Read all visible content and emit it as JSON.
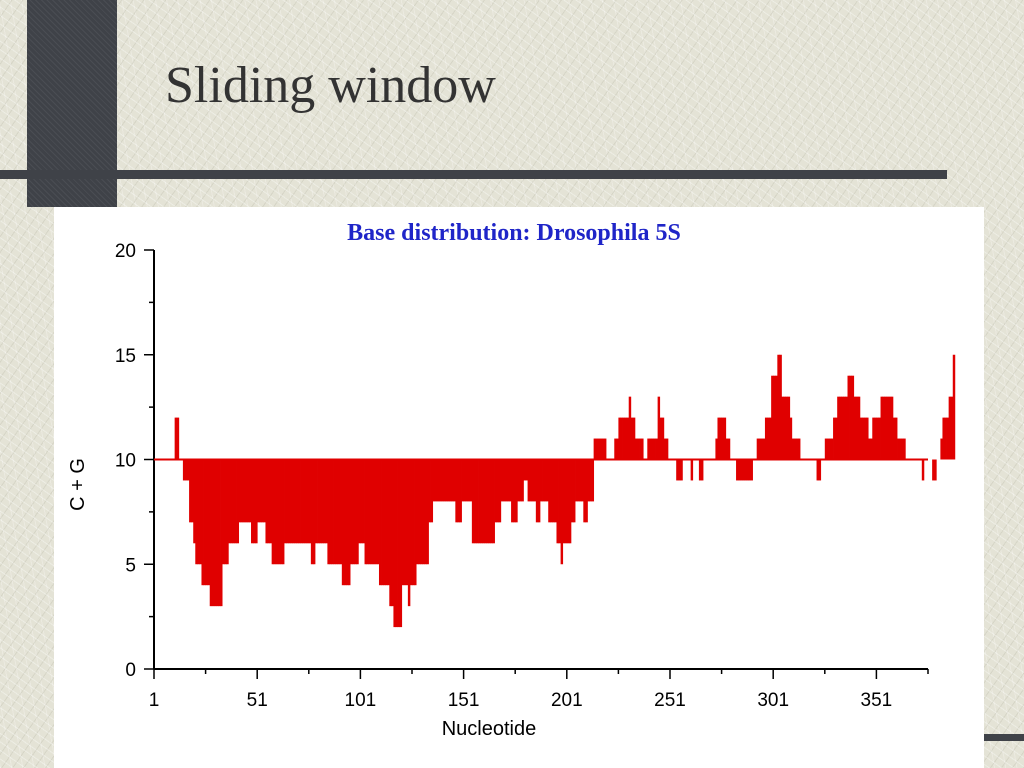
{
  "slide": {
    "title": "Sliding window"
  },
  "colors": {
    "bars": "#e00000",
    "chart_title": "#1f25c8",
    "axis": "#000000"
  },
  "chart_data": {
    "type": "bar",
    "title": "Base distribution: Drosophila 5S",
    "xlabel": "Nucleotide",
    "ylabel": "C + G",
    "xlim": [
      1,
      376
    ],
    "ylim": [
      0,
      20
    ],
    "baseline": 10,
    "x_ticks": [
      1,
      51,
      101,
      151,
      201,
      251,
      301,
      351
    ],
    "y_ticks": [
      0,
      5,
      10,
      15,
      20
    ],
    "grid": false,
    "legend": "none",
    "x_start": 1,
    "x_step": 1,
    "values": [
      10,
      10,
      10,
      10,
      10,
      10,
      10,
      10,
      10,
      10,
      12,
      12,
      10,
      10,
      9,
      9,
      9,
      7,
      7,
      6,
      5,
      5,
      5,
      4,
      4,
      4,
      4,
      3,
      3,
      3,
      3,
      3,
      3,
      5,
      5,
      5,
      6,
      6,
      6,
      6,
      6,
      7,
      7,
      7,
      7,
      7,
      7,
      6,
      6,
      6,
      7,
      7,
      7,
      7,
      6,
      6,
      6,
      5,
      5,
      5,
      5,
      5,
      5,
      6,
      6,
      6,
      6,
      6,
      6,
      6,
      6,
      6,
      6,
      6,
      6,
      6,
      5,
      5,
      6,
      6,
      6,
      6,
      6,
      6,
      5,
      5,
      5,
      5,
      5,
      5,
      5,
      4,
      4,
      4,
      4,
      5,
      5,
      5,
      5,
      6,
      6,
      6,
      5,
      5,
      5,
      5,
      5,
      5,
      5,
      4,
      4,
      4,
      4,
      4,
      3,
      3,
      2,
      2,
      2,
      2,
      4,
      4,
      4,
      3,
      4,
      4,
      4,
      5,
      5,
      5,
      5,
      5,
      5,
      7,
      7,
      8,
      8,
      8,
      8,
      8,
      8,
      8,
      8,
      8,
      8,
      8,
      7,
      7,
      7,
      8,
      8,
      8,
      8,
      8,
      6,
      6,
      6,
      6,
      6,
      6,
      6,
      6,
      6,
      6,
      6,
      7,
      7,
      7,
      8,
      8,
      8,
      8,
      8,
      7,
      7,
      7,
      8,
      8,
      8,
      9,
      9,
      8,
      8,
      8,
      8,
      7,
      7,
      8,
      8,
      8,
      8,
      7,
      7,
      7,
      7,
      6,
      6,
      5,
      6,
      6,
      6,
      6,
      7,
      7,
      8,
      8,
      8,
      8,
      7,
      7,
      8,
      8,
      8,
      11,
      11,
      11,
      11,
      11,
      11,
      10,
      10,
      10,
      10,
      11,
      11,
      12,
      12,
      12,
      12,
      12,
      13,
      12,
      12,
      11,
      11,
      11,
      11,
      10,
      10,
      11,
      11,
      11,
      11,
      11,
      13,
      12,
      12,
      11,
      11,
      10,
      10,
      10,
      10,
      9,
      9,
      9,
      10,
      10,
      10,
      10,
      9,
      10,
      10,
      10,
      9,
      9,
      10,
      10,
      10,
      10,
      10,
      10,
      11,
      12,
      12,
      12,
      12,
      11,
      11,
      10,
      10,
      10,
      9,
      9,
      9,
      9,
      9,
      9,
      9,
      9,
      10,
      10,
      11,
      11,
      11,
      11,
      12,
      12,
      12,
      14,
      14,
      14,
      15,
      15,
      13,
      13,
      13,
      13,
      12,
      11,
      11,
      11,
      11,
      10,
      10,
      10,
      10,
      10,
      10,
      10,
      10,
      9,
      9,
      10,
      10,
      11,
      11,
      11,
      11,
      12,
      12,
      13,
      13,
      13,
      13,
      13,
      14,
      14,
      14,
      13,
      13,
      13,
      12,
      12,
      12,
      12,
      11,
      11,
      12,
      12,
      12,
      12,
      13,
      13,
      13,
      13,
      13,
      13,
      12,
      12,
      11,
      11,
      11,
      11,
      10,
      10,
      10,
      10,
      10,
      10,
      10,
      10,
      9,
      10,
      10,
      10,
      10,
      9,
      9,
      10,
      10,
      11,
      12,
      12,
      12,
      13,
      13,
      15,
      10,
      10,
      10,
      10,
      10,
      10,
      10,
      10,
      10,
      10,
      10
    ]
  }
}
